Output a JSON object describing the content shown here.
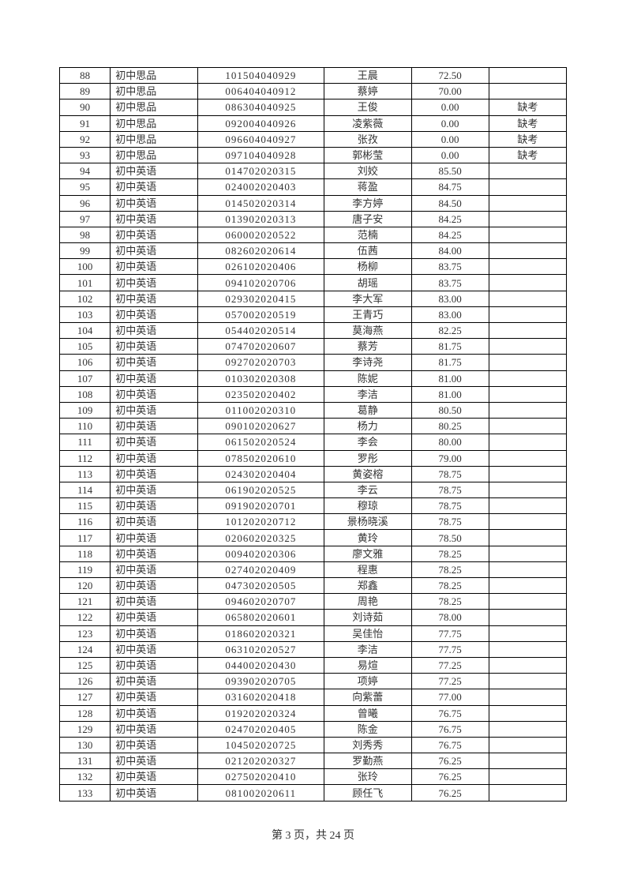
{
  "page": {
    "current": 3,
    "total": 24,
    "footer_prefix": "第 ",
    "footer_mid": " 页，共 ",
    "footer_suffix": " 页"
  },
  "columns": [
    "idx",
    "subj",
    "id",
    "name",
    "score",
    "note"
  ],
  "rows": [
    {
      "idx": "88",
      "subj": "初中思品",
      "id": "101504040929",
      "name": "王晨",
      "score": "72.50",
      "note": ""
    },
    {
      "idx": "89",
      "subj": "初中思品",
      "id": "006404040912",
      "name": "蔡婷",
      "score": "70.00",
      "note": ""
    },
    {
      "idx": "90",
      "subj": "初中思品",
      "id": "086304040925",
      "name": "王俊",
      "score": "0.00",
      "note": "缺考"
    },
    {
      "idx": "91",
      "subj": "初中思品",
      "id": "092004040926",
      "name": "凌紫薇",
      "score": "0.00",
      "note": "缺考"
    },
    {
      "idx": "92",
      "subj": "初中思品",
      "id": "096604040927",
      "name": "张孜",
      "score": "0.00",
      "note": "缺考"
    },
    {
      "idx": "93",
      "subj": "初中思品",
      "id": "097104040928",
      "name": "郭彬莹",
      "score": "0.00",
      "note": "缺考"
    },
    {
      "idx": "94",
      "subj": "初中英语",
      "id": "014702020315",
      "name": "刘姣",
      "score": "85.50",
      "note": ""
    },
    {
      "idx": "95",
      "subj": "初中英语",
      "id": "024002020403",
      "name": "蒋盈",
      "score": "84.75",
      "note": ""
    },
    {
      "idx": "96",
      "subj": "初中英语",
      "id": "014502020314",
      "name": "李方婷",
      "score": "84.50",
      "note": ""
    },
    {
      "idx": "97",
      "subj": "初中英语",
      "id": "013902020313",
      "name": "唐子安",
      "score": "84.25",
      "note": ""
    },
    {
      "idx": "98",
      "subj": "初中英语",
      "id": "060002020522",
      "name": "范楠",
      "score": "84.25",
      "note": ""
    },
    {
      "idx": "99",
      "subj": "初中英语",
      "id": "082602020614",
      "name": "伍茜",
      "score": "84.00",
      "note": ""
    },
    {
      "idx": "100",
      "subj": "初中英语",
      "id": "026102020406",
      "name": "杨柳",
      "score": "83.75",
      "note": ""
    },
    {
      "idx": "101",
      "subj": "初中英语",
      "id": "094102020706",
      "name": "胡瑶",
      "score": "83.75",
      "note": ""
    },
    {
      "idx": "102",
      "subj": "初中英语",
      "id": "029302020415",
      "name": "李大军",
      "score": "83.00",
      "note": ""
    },
    {
      "idx": "103",
      "subj": "初中英语",
      "id": "057002020519",
      "name": "王青巧",
      "score": "83.00",
      "note": ""
    },
    {
      "idx": "104",
      "subj": "初中英语",
      "id": "054402020514",
      "name": "莫海燕",
      "score": "82.25",
      "note": ""
    },
    {
      "idx": "105",
      "subj": "初中英语",
      "id": "074702020607",
      "name": "蔡芳",
      "score": "81.75",
      "note": ""
    },
    {
      "idx": "106",
      "subj": "初中英语",
      "id": "092702020703",
      "name": "李诗尧",
      "score": "81.75",
      "note": ""
    },
    {
      "idx": "107",
      "subj": "初中英语",
      "id": "010302020308",
      "name": "陈妮",
      "score": "81.00",
      "note": ""
    },
    {
      "idx": "108",
      "subj": "初中英语",
      "id": "023502020402",
      "name": "李洁",
      "score": "81.00",
      "note": ""
    },
    {
      "idx": "109",
      "subj": "初中英语",
      "id": "011002020310",
      "name": "葛静",
      "score": "80.50",
      "note": ""
    },
    {
      "idx": "110",
      "subj": "初中英语",
      "id": "090102020627",
      "name": "杨力",
      "score": "80.25",
      "note": ""
    },
    {
      "idx": "111",
      "subj": "初中英语",
      "id": "061502020524",
      "name": "李会",
      "score": "80.00",
      "note": ""
    },
    {
      "idx": "112",
      "subj": "初中英语",
      "id": "078502020610",
      "name": "罗彤",
      "score": "79.00",
      "note": ""
    },
    {
      "idx": "113",
      "subj": "初中英语",
      "id": "024302020404",
      "name": "黄姿榕",
      "score": "78.75",
      "note": ""
    },
    {
      "idx": "114",
      "subj": "初中英语",
      "id": "061902020525",
      "name": "李云",
      "score": "78.75",
      "note": ""
    },
    {
      "idx": "115",
      "subj": "初中英语",
      "id": "091902020701",
      "name": "穆琼",
      "score": "78.75",
      "note": ""
    },
    {
      "idx": "116",
      "subj": "初中英语",
      "id": "101202020712",
      "name": "景杨晓溪",
      "score": "78.75",
      "note": ""
    },
    {
      "idx": "117",
      "subj": "初中英语",
      "id": "020602020325",
      "name": "黄玲",
      "score": "78.50",
      "note": ""
    },
    {
      "idx": "118",
      "subj": "初中英语",
      "id": "009402020306",
      "name": "廖文雅",
      "score": "78.25",
      "note": ""
    },
    {
      "idx": "119",
      "subj": "初中英语",
      "id": "027402020409",
      "name": "程惠",
      "score": "78.25",
      "note": ""
    },
    {
      "idx": "120",
      "subj": "初中英语",
      "id": "047302020505",
      "name": "郑鑫",
      "score": "78.25",
      "note": ""
    },
    {
      "idx": "121",
      "subj": "初中英语",
      "id": "094602020707",
      "name": "周艳",
      "score": "78.25",
      "note": ""
    },
    {
      "idx": "122",
      "subj": "初中英语",
      "id": "065802020601",
      "name": "刘诗茹",
      "score": "78.00",
      "note": ""
    },
    {
      "idx": "123",
      "subj": "初中英语",
      "id": "018602020321",
      "name": "吴佳怡",
      "score": "77.75",
      "note": ""
    },
    {
      "idx": "124",
      "subj": "初中英语",
      "id": "063102020527",
      "name": "李洁",
      "score": "77.75",
      "note": ""
    },
    {
      "idx": "125",
      "subj": "初中英语",
      "id": "044002020430",
      "name": "易煊",
      "score": "77.25",
      "note": ""
    },
    {
      "idx": "126",
      "subj": "初中英语",
      "id": "093902020705",
      "name": "项婷",
      "score": "77.25",
      "note": ""
    },
    {
      "idx": "127",
      "subj": "初中英语",
      "id": "031602020418",
      "name": "向紫蕾",
      "score": "77.00",
      "note": ""
    },
    {
      "idx": "128",
      "subj": "初中英语",
      "id": "019202020324",
      "name": "曾曦",
      "score": "76.75",
      "note": ""
    },
    {
      "idx": "129",
      "subj": "初中英语",
      "id": "024702020405",
      "name": "陈金",
      "score": "76.75",
      "note": ""
    },
    {
      "idx": "130",
      "subj": "初中英语",
      "id": "104502020725",
      "name": "刘秀秀",
      "score": "76.75",
      "note": ""
    },
    {
      "idx": "131",
      "subj": "初中英语",
      "id": "021202020327",
      "name": "罗勤燕",
      "score": "76.25",
      "note": ""
    },
    {
      "idx": "132",
      "subj": "初中英语",
      "id": "027502020410",
      "name": "张玲",
      "score": "76.25",
      "note": ""
    },
    {
      "idx": "133",
      "subj": "初中英语",
      "id": "081002020611",
      "name": "顾任飞",
      "score": "76.25",
      "note": ""
    }
  ]
}
